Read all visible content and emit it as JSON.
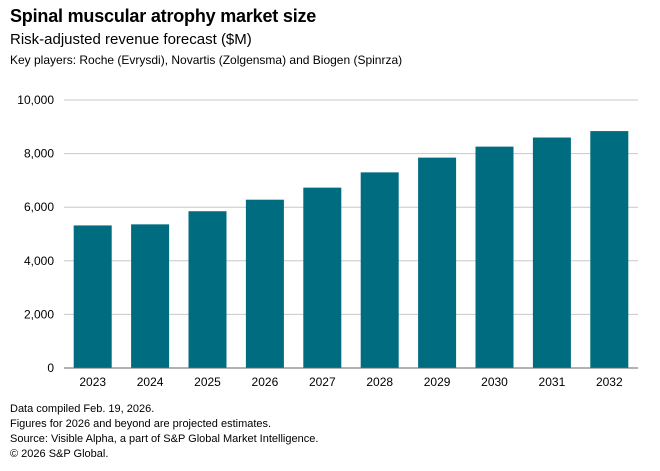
{
  "header": {
    "title": "Spinal muscular atrophy market size",
    "subtitle": "Risk-adjusted revenue forecast ($M)",
    "note": "Key players: Roche (Evrysdi), Novartis (Zolgensma) and Biogen (Spinrza)"
  },
  "colors": {
    "bar": "#006c80",
    "grid": "#c8c8c8",
    "axis": "#666666"
  },
  "chart_data": {
    "type": "bar",
    "title": "Spinal muscular atrophy market size",
    "xlabel": "",
    "ylabel": "",
    "categories": [
      "2023",
      "2024",
      "2025",
      "2026",
      "2027",
      "2028",
      "2029",
      "2030",
      "2031",
      "2032"
    ],
    "values": [
      5320,
      5360,
      5850,
      6280,
      6730,
      7300,
      7850,
      8260,
      8600,
      8840
    ],
    "ylim": [
      0,
      10000
    ],
    "yticks": [
      0,
      2000,
      4000,
      6000,
      8000,
      10000
    ],
    "ytick_labels": [
      "0",
      "2,000",
      "4,000",
      "6,000",
      "8,000",
      "10,000"
    ],
    "grid": true
  },
  "footer": {
    "compiled": "Data compiled Feb. 19, 2026.",
    "projection_note": "Figures for 2026 and beyond are projected estimates.",
    "source": "Source: Visible Alpha, a part of S&P Global Market Intelligence.",
    "copyright": "© 2026 S&P Global."
  }
}
